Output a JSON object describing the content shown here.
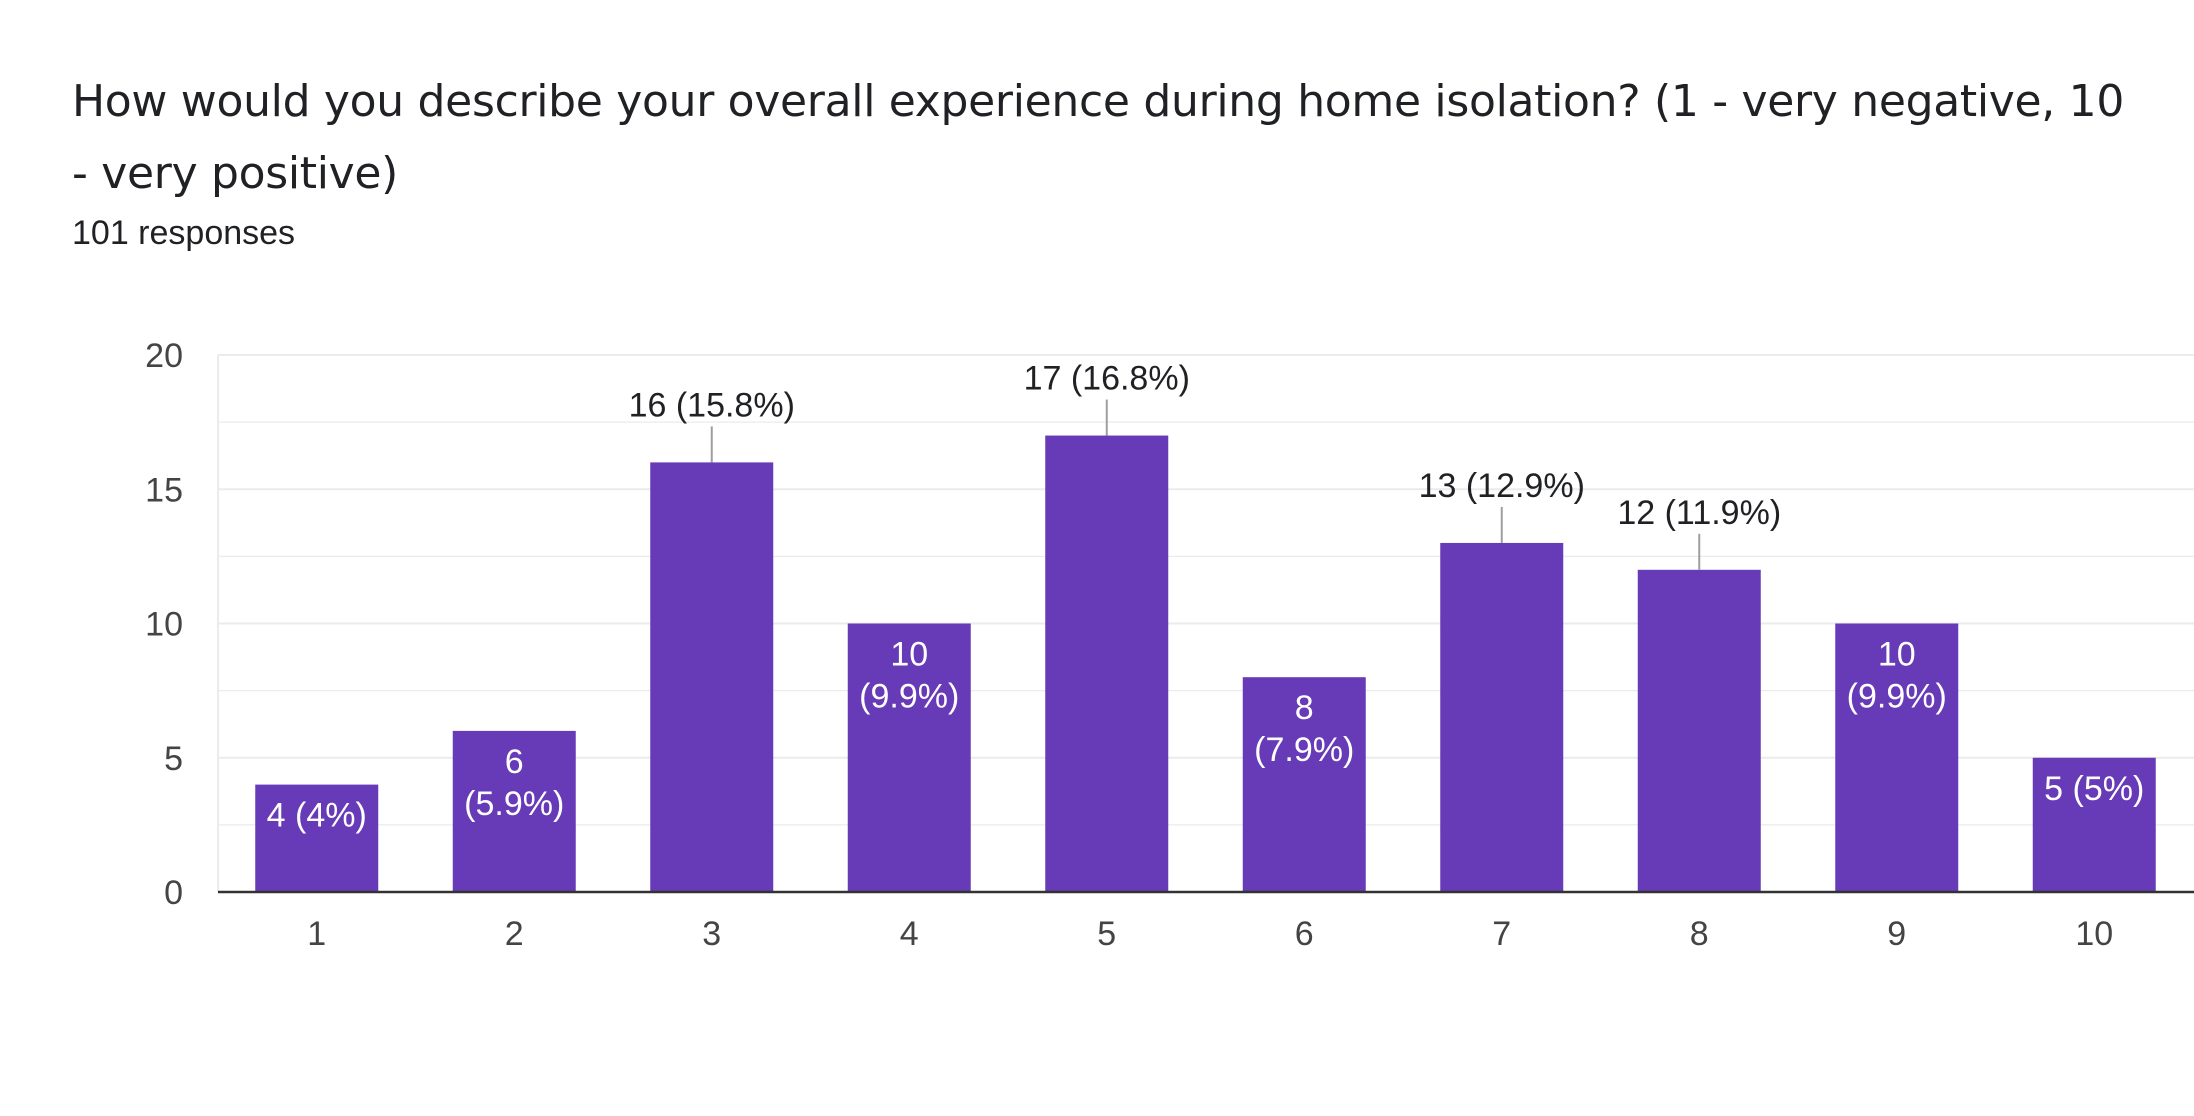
{
  "question": {
    "title": "How would you describe your overall experience during home isolation? (1 - very negative, 10 - very positive)",
    "responses": "101 responses"
  },
  "colors": {
    "bar": "#673ab7",
    "gridline": "#ebebeb",
    "axis": "#333333",
    "label_outside": "#202124",
    "label_inside": "#ffffff",
    "leader_line": "#9e9e9e"
  },
  "chart_data": {
    "type": "bar",
    "title": "How would you describe your overall experience during home isolation? (1 - very negative, 10 - very positive)",
    "xlabel": "",
    "ylabel": "",
    "categories": [
      "1",
      "2",
      "3",
      "4",
      "5",
      "6",
      "7",
      "8",
      "9",
      "10"
    ],
    "values": [
      4,
      6,
      16,
      10,
      17,
      8,
      13,
      12,
      10,
      5
    ],
    "data_labels": [
      [
        "4 (4%)"
      ],
      [
        "6",
        "(5.9%)"
      ],
      [
        "16 (15.8%)"
      ],
      [
        "10",
        "(9.9%)"
      ],
      [
        "17 (16.8%)"
      ],
      [
        "8",
        "(7.9%)"
      ],
      [
        "13 (12.9%)"
      ],
      [
        "12 (11.9%)"
      ],
      [
        "10",
        "(9.9%)"
      ],
      [
        "5 (5%)"
      ]
    ],
    "label_placement": [
      "inside",
      "inside",
      "above",
      "inside",
      "above",
      "inside",
      "above",
      "above",
      "inside",
      "inside"
    ],
    "y_ticks": [
      0,
      5,
      10,
      15,
      20
    ],
    "ylim": [
      0,
      20
    ],
    "grid": true,
    "legend": "none"
  }
}
